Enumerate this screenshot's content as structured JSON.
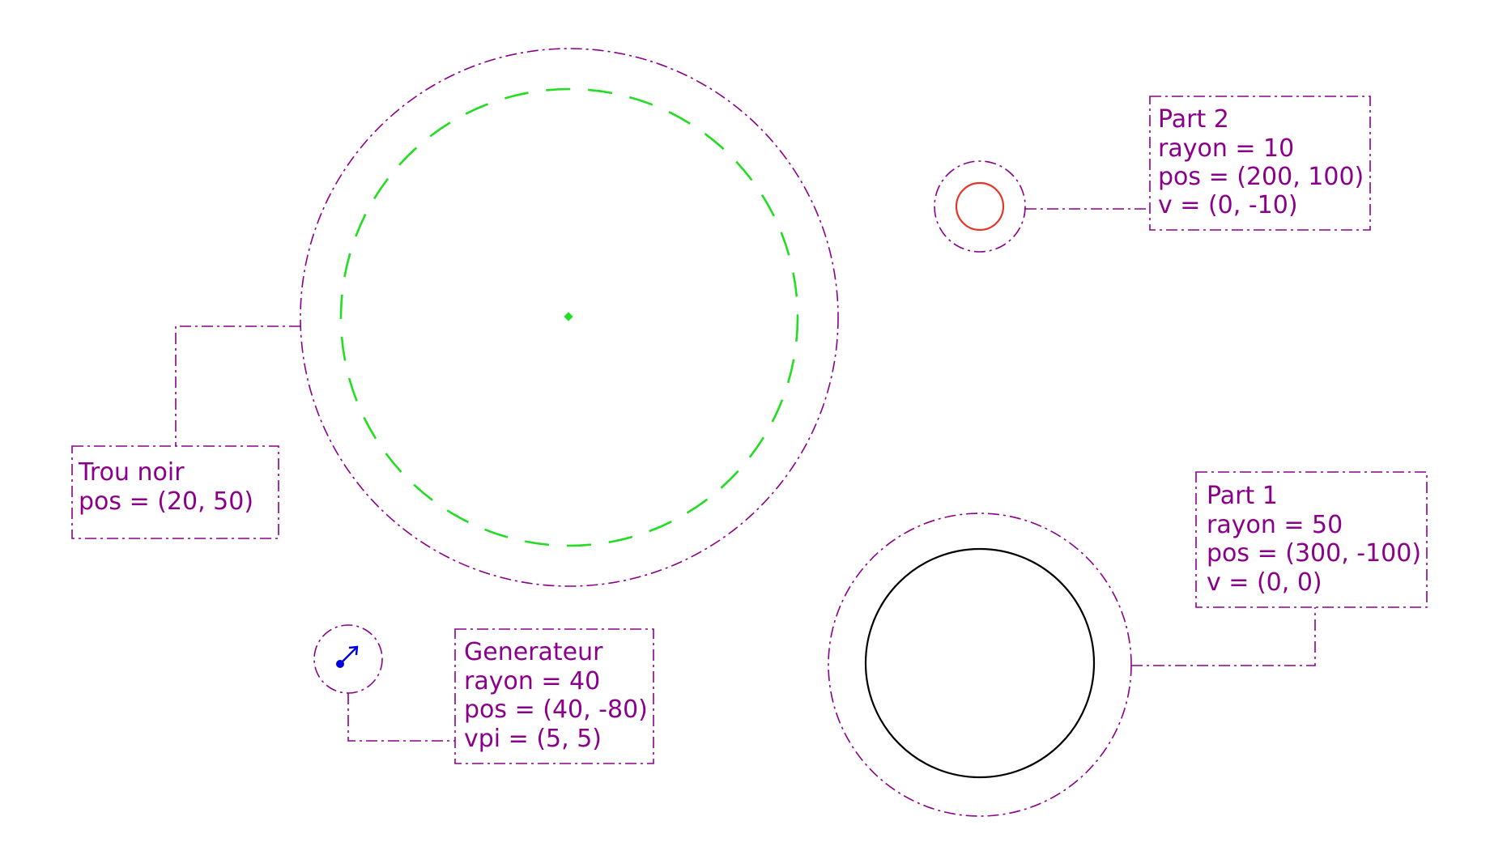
{
  "colors": {
    "annotation": "#8b008b",
    "black_hole_horizon": "#22dd22",
    "part2_body": "#e8332a",
    "part1_body": "#000000",
    "generator_arrow": "#0000dd"
  },
  "labels": {
    "black_hole": [
      "Trou noir",
      "pos = (20, 50)"
    ],
    "part2": [
      "Part 2",
      "rayon = 10",
      "pos = (200, 100)",
      "v = (0, -10)"
    ],
    "part1": [
      "Part 1",
      "rayon = 50",
      "pos = (300, -100)",
      "v = (0, 0)"
    ],
    "generator": [
      "Generateur",
      "rayon = 40",
      "pos = (40, -80)",
      "vpi = (5, 5)"
    ]
  }
}
